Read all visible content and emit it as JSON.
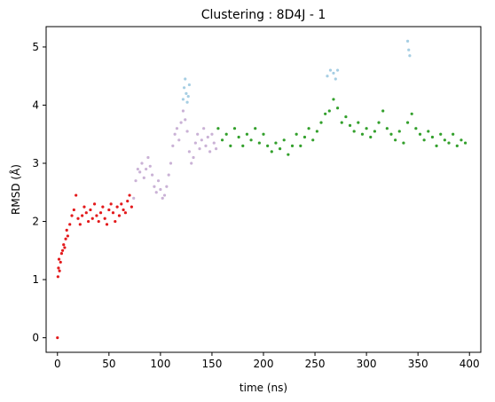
{
  "chart_data": {
    "type": "scatter",
    "title": "Clustering : 8D4J - 1",
    "xlabel": "time (ns)",
    "ylabel": "RMSD (Å)",
    "xlim": [
      -11,
      411
    ],
    "ylim": [
      -0.25,
      5.35
    ],
    "xticks": [
      0,
      50,
      100,
      150,
      200,
      250,
      300,
      350,
      400
    ],
    "yticks": [
      0,
      1,
      2,
      3,
      4,
      5
    ],
    "grid": false,
    "legend": "none",
    "colors": {
      "cluster_red": "#e31a1c",
      "cluster_lavender": "#cab2d6",
      "cluster_green": "#33a02c",
      "cluster_lightblue": "#a6cee3"
    },
    "series": [
      {
        "color": "#e31a1c",
        "x": [
          0,
          0.5,
          1,
          1.5,
          2,
          3,
          4,
          5,
          6,
          7,
          8,
          9,
          10,
          12,
          14,
          16,
          18,
          20,
          22,
          24,
          26,
          28,
          30,
          32,
          34,
          36,
          38,
          40,
          42,
          44,
          46,
          48,
          50,
          52,
          54,
          56,
          58,
          60,
          62,
          64,
          66,
          68,
          70,
          72
        ],
        "y": [
          0.0,
          1.05,
          1.2,
          1.35,
          1.15,
          1.3,
          1.45,
          1.5,
          1.6,
          1.55,
          1.7,
          1.85,
          1.75,
          1.95,
          2.1,
          2.2,
          2.45,
          2.05,
          1.95,
          2.1,
          2.25,
          2.15,
          2.0,
          2.2,
          2.05,
          2.3,
          2.1,
          2.0,
          2.15,
          2.25,
          2.05,
          1.95,
          2.2,
          2.3,
          2.15,
          2.0,
          2.25,
          2.1,
          2.3,
          2.2,
          2.15,
          2.35,
          2.45,
          2.25
        ]
      },
      {
        "color": "#cab2d6",
        "x": [
          74,
          76,
          78,
          80,
          82,
          84,
          86,
          88,
          90,
          92,
          94,
          96,
          98,
          100,
          102,
          104,
          106,
          108,
          110,
          112,
          114,
          116,
          118,
          120,
          122,
          124,
          126,
          128,
          130,
          132,
          134,
          136,
          138,
          140,
          142,
          144,
          146,
          148,
          150,
          152,
          154
        ],
        "y": [
          2.4,
          2.7,
          2.9,
          2.85,
          3.0,
          2.75,
          2.9,
          3.1,
          2.95,
          2.8,
          2.6,
          2.5,
          2.7,
          2.55,
          2.4,
          2.45,
          2.6,
          2.8,
          3.0,
          3.3,
          3.5,
          3.6,
          3.4,
          3.7,
          3.9,
          3.75,
          3.55,
          3.2,
          3.0,
          3.1,
          3.35,
          3.5,
          3.25,
          3.4,
          3.6,
          3.3,
          3.45,
          3.2,
          3.5,
          3.35,
          3.25
        ]
      },
      {
        "color": "#a6cee3",
        "x": [
          122,
          123,
          124,
          125,
          126,
          127,
          128,
          262,
          265,
          268,
          270,
          272,
          340,
          341,
          342
        ],
        "y": [
          4.1,
          4.3,
          4.45,
          4.2,
          4.05,
          4.15,
          4.35,
          4.5,
          4.6,
          4.55,
          4.45,
          4.6,
          5.1,
          4.95,
          4.85
        ]
      },
      {
        "color": "#33a02c",
        "x": [
          156,
          160,
          164,
          168,
          172,
          176,
          180,
          184,
          188,
          192,
          196,
          200,
          204,
          208,
          212,
          216,
          220,
          224,
          228,
          232,
          236,
          240,
          244,
          248,
          252,
          256,
          260,
          264,
          268,
          272,
          276,
          280,
          284,
          288,
          292,
          296,
          300,
          304,
          308,
          312,
          316,
          320,
          324,
          328,
          332,
          336,
          340,
          344,
          348,
          352,
          356,
          360,
          364,
          368,
          372,
          376,
          380,
          384,
          388,
          392,
          396
        ],
        "y": [
          3.6,
          3.4,
          3.5,
          3.3,
          3.6,
          3.45,
          3.3,
          3.5,
          3.4,
          3.6,
          3.35,
          3.5,
          3.3,
          3.2,
          3.35,
          3.25,
          3.4,
          3.15,
          3.3,
          3.5,
          3.3,
          3.45,
          3.6,
          3.4,
          3.55,
          3.7,
          3.85,
          3.9,
          4.1,
          3.95,
          3.7,
          3.8,
          3.65,
          3.55,
          3.7,
          3.5,
          3.6,
          3.45,
          3.55,
          3.7,
          3.9,
          3.6,
          3.5,
          3.4,
          3.55,
          3.35,
          3.7,
          3.85,
          3.6,
          3.5,
          3.4,
          3.55,
          3.45,
          3.3,
          3.5,
          3.4,
          3.35,
          3.5,
          3.3,
          3.4,
          3.35
        ]
      }
    ]
  }
}
